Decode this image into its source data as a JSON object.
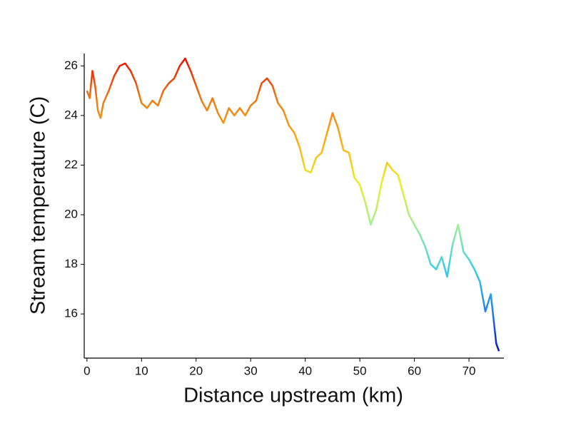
{
  "chart_data": {
    "type": "line",
    "xlabel": "Distance upstream (km)",
    "ylabel": "Stream temperature (C)",
    "x": [
      0,
      0.5,
      1,
      1.5,
      2,
      2.5,
      3,
      4,
      5,
      6,
      7,
      8,
      9,
      10,
      11,
      12,
      13,
      14,
      15,
      16,
      17,
      18,
      19,
      20,
      21,
      22,
      23,
      24,
      25,
      26,
      27,
      28,
      29,
      30,
      31,
      32,
      33,
      34,
      35,
      36,
      37,
      38,
      39,
      40,
      41,
      42,
      43,
      44,
      45,
      46,
      47,
      48,
      49,
      50,
      51,
      52,
      53,
      54,
      55,
      56,
      57,
      58,
      59,
      60,
      61,
      62,
      63,
      64,
      65,
      66,
      67,
      68,
      69,
      70,
      71,
      72,
      73,
      74,
      75,
      75.5
    ],
    "series": [
      {
        "values": [
          25.0,
          24.7,
          25.8,
          25.2,
          24.2,
          23.9,
          24.5,
          25.0,
          25.6,
          26.0,
          26.1,
          25.8,
          25.3,
          24.5,
          24.3,
          24.6,
          24.4,
          25.0,
          25.3,
          25.5,
          26.0,
          26.3,
          25.8,
          25.2,
          24.6,
          24.2,
          24.7,
          24.1,
          23.7,
          24.3,
          24.0,
          24.3,
          24.0,
          24.4,
          24.6,
          25.3,
          25.5,
          25.2,
          24.5,
          24.2,
          23.6,
          23.3,
          22.7,
          21.8,
          21.7,
          22.3,
          22.5,
          23.3,
          24.1,
          23.5,
          22.6,
          22.5,
          21.5,
          21.2,
          20.5,
          19.6,
          20.2,
          21.3,
          22.1,
          21.8,
          21.6,
          20.8,
          20.0,
          19.6,
          19.2,
          18.7,
          18.0,
          17.8,
          18.3,
          17.5,
          18.8,
          19.6,
          18.5,
          18.2,
          17.8,
          17.3,
          16.1,
          16.8,
          14.8,
          14.5
        ]
      }
    ],
    "colormap": [
      "#0000cc",
      "#2277ee",
      "#33ccee",
      "#99ee99",
      "#eeee22",
      "#ffaa11",
      "#ee7711",
      "#ee0000"
    ],
    "xlim": [
      -0.5,
      76.4
    ],
    "ylim": [
      14.22,
      26.5
    ],
    "xticks": [
      0,
      10,
      20,
      30,
      40,
      50,
      60,
      70
    ],
    "yticks": [
      16,
      18,
      20,
      22,
      24,
      26
    ]
  }
}
